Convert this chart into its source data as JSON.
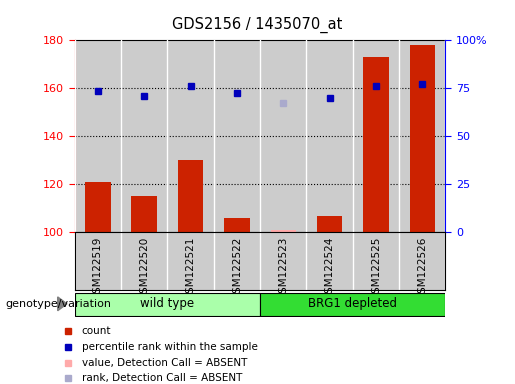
{
  "title": "GDS2156 / 1435070_at",
  "samples": [
    "GSM122519",
    "GSM122520",
    "GSM122521",
    "GSM122522",
    "GSM122523",
    "GSM122524",
    "GSM122525",
    "GSM122526"
  ],
  "bar_values": [
    121,
    115,
    130,
    106,
    101,
    107,
    173,
    178
  ],
  "bar_absent": [
    false,
    false,
    false,
    false,
    true,
    false,
    false,
    false
  ],
  "rank_values": [
    159,
    157,
    161,
    158,
    154,
    156,
    161,
    162
  ],
  "rank_absent": [
    false,
    false,
    false,
    false,
    true,
    false,
    false,
    false
  ],
  "ylim_left": [
    100,
    180
  ],
  "ylim_right": [
    0,
    100
  ],
  "yticks_left": [
    100,
    120,
    140,
    160,
    180
  ],
  "yticks_right": [
    0,
    25,
    50,
    75,
    100
  ],
  "ytick_right_labels": [
    "0",
    "25",
    "50",
    "75",
    "100%"
  ],
  "groups": [
    {
      "label": "wild type",
      "start": 0,
      "end": 4,
      "color": "#aaffaa"
    },
    {
      "label": "BRG1 depleted",
      "start": 4,
      "end": 8,
      "color": "#33dd33"
    }
  ],
  "group_label": "genotype/variation",
  "bar_color": "#cc2200",
  "bar_absent_color": "#ffaaaa",
  "rank_color": "#0000bb",
  "rank_absent_color": "#aaaacc",
  "bg_color": "#cccccc",
  "legend_items": [
    {
      "label": "count",
      "color": "#cc2200"
    },
    {
      "label": "percentile rank within the sample",
      "color": "#0000bb"
    },
    {
      "label": "value, Detection Call = ABSENT",
      "color": "#ffaaaa"
    },
    {
      "label": "rank, Detection Call = ABSENT",
      "color": "#aaaacc"
    }
  ]
}
